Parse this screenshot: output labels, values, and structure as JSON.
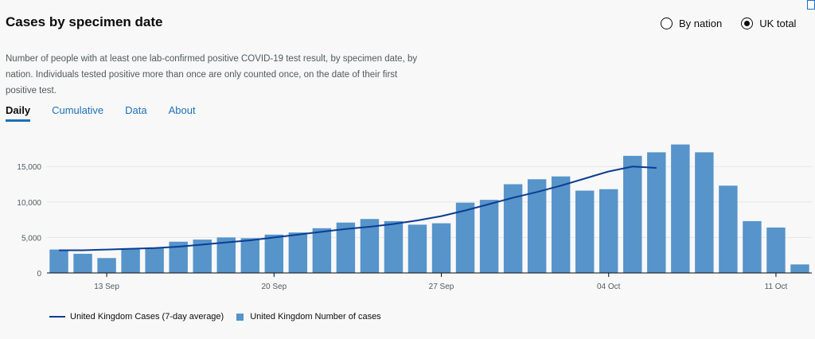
{
  "title": "Cases by specimen date",
  "description": "Number of people with at least one lab-confirmed positive COVID-19 test result, by specimen date, by nation. Individuals tested positive more than once are only counted once, on the date of their first positive test.",
  "radios": [
    {
      "label": "By nation",
      "selected": false
    },
    {
      "label": "UK total",
      "selected": true
    }
  ],
  "tabs": [
    {
      "label": "Daily",
      "active": true
    },
    {
      "label": "Cumulative",
      "active": false
    },
    {
      "label": "Data",
      "active": false
    },
    {
      "label": "About",
      "active": false
    }
  ],
  "legend": {
    "line_label": "United Kingdom Cases (7-day average)",
    "bar_label": "United Kingdom Number of cases"
  },
  "colors": {
    "bar": "#5694ca",
    "line": "#0b3d91",
    "tab_accent": "#1d70b8"
  },
  "chart_data": {
    "type": "bar",
    "x": [
      "2020-09-11",
      "2020-09-12",
      "2020-09-13",
      "2020-09-14",
      "2020-09-15",
      "2020-09-16",
      "2020-09-17",
      "2020-09-18",
      "2020-09-19",
      "2020-09-20",
      "2020-09-21",
      "2020-09-22",
      "2020-09-23",
      "2020-09-24",
      "2020-09-25",
      "2020-09-26",
      "2020-09-27",
      "2020-09-28",
      "2020-09-29",
      "2020-09-30",
      "2020-10-01",
      "2020-10-02",
      "2020-10-03",
      "2020-10-04",
      "2020-10-05",
      "2020-10-06",
      "2020-10-07",
      "2020-10-08",
      "2020-10-09",
      "2020-10-10",
      "2020-10-11",
      "2020-10-12"
    ],
    "x_ticks": [
      {
        "date": "2020-09-13",
        "label": "13 Sep"
      },
      {
        "date": "2020-09-20",
        "label": "20 Sep"
      },
      {
        "date": "2020-09-27",
        "label": "27 Sep"
      },
      {
        "date": "2020-10-04",
        "label": "04 Oct"
      },
      {
        "date": "2020-10-11",
        "label": "11 Oct"
      }
    ],
    "y_ticks": [
      {
        "value": 0,
        "label": "0"
      },
      {
        "value": 5000,
        "label": "5,000"
      },
      {
        "value": 10000,
        "label": "10,000"
      },
      {
        "value": 15000,
        "label": "15,000"
      }
    ],
    "ylim": [
      0,
      18500
    ],
    "series": [
      {
        "name": "United Kingdom Number of cases",
        "kind": "bar",
        "values": [
          3300,
          2700,
          2100,
          3400,
          3600,
          4400,
          4700,
          5000,
          4900,
          5400,
          5700,
          6300,
          7100,
          7600,
          7300,
          6800,
          7000,
          9900,
          10300,
          12500,
          13200,
          13600,
          11600,
          11800,
          16500,
          17000,
          18100,
          17000,
          12300,
          7300,
          6400,
          1200
        ]
      },
      {
        "name": "United Kingdom Cases (7-day average)",
        "kind": "line",
        "values": [
          3200,
          3200,
          3300,
          3400,
          3500,
          3700,
          4000,
          4300,
          4600,
          5000,
          5400,
          5800,
          6200,
          6500,
          6900,
          7400,
          8000,
          8800,
          9700,
          10600,
          11400,
          12300,
          13300,
          14300,
          15000,
          14800,
          null,
          null,
          null,
          null,
          null,
          null
        ]
      }
    ],
    "grid": true
  }
}
